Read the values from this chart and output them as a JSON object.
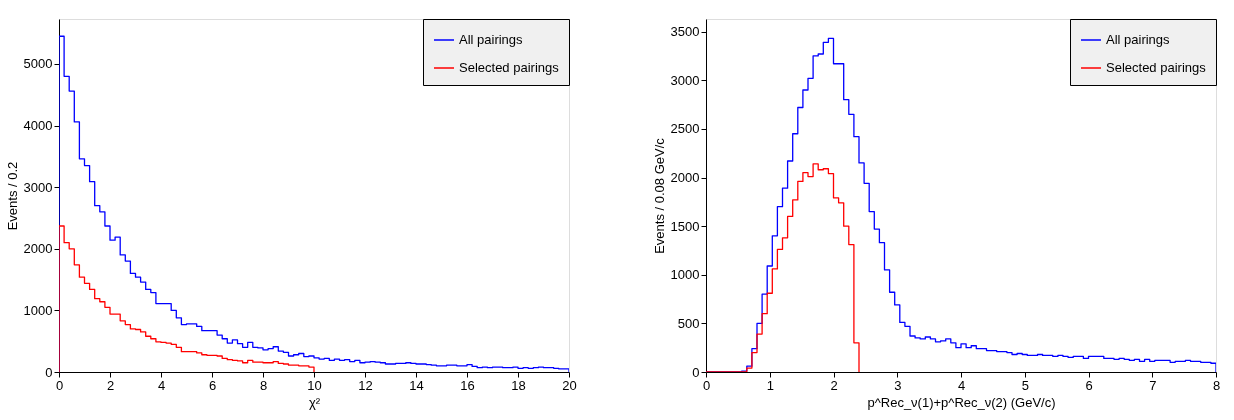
{
  "chart_data": [
    {
      "type": "histogram",
      "xlabel": "χ²",
      "ylabel": "Events / 0.2",
      "xlim": [
        0,
        20
      ],
      "ylim": [
        0,
        5730
      ],
      "xticks": [
        0,
        2,
        4,
        6,
        8,
        10,
        12,
        14,
        16,
        18,
        20
      ],
      "yticks": [
        0,
        1000,
        2000,
        3000,
        4000,
        5000
      ],
      "grid": false,
      "legend": "top right",
      "bins": [
        0,
        0.2,
        0.4,
        0.6,
        0.8,
        1,
        1.2,
        1.4,
        1.6,
        1.8,
        2,
        2.2,
        2.4,
        2.6,
        2.8,
        3,
        3.2,
        3.4,
        3.6,
        3.8,
        4,
        4.2,
        4.4,
        4.6,
        4.8,
        5,
        5.2,
        5.4,
        5.6,
        5.8,
        6,
        6.2,
        6.4,
        6.6,
        6.8,
        7,
        7.2,
        7.4,
        7.6,
        7.8,
        8,
        8.2,
        8.4,
        8.6,
        8.8,
        9,
        9.2,
        9.4,
        9.6,
        9.8,
        10,
        10.2,
        10.4,
        10.6,
        10.8,
        11,
        11.2,
        11.4,
        11.6,
        11.8,
        12,
        12.2,
        12.4,
        12.6,
        12.8,
        13,
        13.2,
        13.4,
        13.6,
        13.8,
        14,
        14.2,
        14.4,
        14.6,
        14.8,
        15,
        15.2,
        15.4,
        15.6,
        15.8,
        16,
        16.2,
        16.4,
        16.6,
        16.8,
        17,
        17.2,
        17.4,
        17.6,
        17.8,
        18,
        18.2,
        18.4,
        18.6,
        18.8,
        19,
        19.2,
        19.4,
        19.6,
        19.8,
        20
      ],
      "series": [
        {
          "name": "All pairings",
          "color": "#0000ff",
          "values": [
            5450,
            4800,
            4560,
            4060,
            3460,
            3350,
            3090,
            2700,
            2600,
            2370,
            2140,
            2190,
            1900,
            1800,
            1600,
            1540,
            1460,
            1340,
            1290,
            1110,
            1110,
            1110,
            1000,
            880,
            770,
            780,
            780,
            740,
            670,
            670,
            670,
            600,
            540,
            470,
            520,
            460,
            400,
            480,
            400,
            390,
            360,
            380,
            410,
            340,
            320,
            260,
            280,
            300,
            250,
            260,
            230,
            210,
            220,
            190,
            210,
            190,
            200,
            170,
            190,
            150,
            160,
            170,
            160,
            150,
            130,
            130,
            140,
            140,
            150,
            140,
            130,
            130,
            120,
            110,
            100,
            100,
            110,
            110,
            100,
            100,
            120,
            90,
            70,
            80,
            70,
            80,
            80,
            70,
            70,
            80,
            60,
            70,
            60,
            70,
            80,
            70,
            70,
            60,
            50,
            50
          ]
        },
        {
          "name": "Selected pairings",
          "color": "#ff0000",
          "bins": [
            0,
            0.2,
            0.4,
            0.6,
            0.8,
            1,
            1.2,
            1.4,
            1.6,
            1.8,
            2,
            2.2,
            2.4,
            2.6,
            2.8,
            3,
            3.2,
            3.4,
            3.6,
            3.8,
            4,
            4.2,
            4.4,
            4.6,
            4.8,
            5,
            5.2,
            5.4,
            5.6,
            5.8,
            6,
            6.2,
            6.4,
            6.6,
            6.8,
            7,
            7.2,
            7.4,
            7.6,
            7.8,
            8,
            8.2,
            8.4,
            8.6,
            8.8,
            9,
            9.2,
            9.4,
            9.6,
            9.8,
            10
          ],
          "values": [
            2370,
            2100,
            2000,
            1740,
            1540,
            1440,
            1340,
            1190,
            1140,
            1050,
            940,
            940,
            830,
            770,
            700,
            690,
            650,
            580,
            540,
            490,
            480,
            470,
            450,
            400,
            330,
            330,
            330,
            310,
            280,
            270,
            270,
            260,
            220,
            200,
            190,
            180,
            150,
            190,
            160,
            160,
            150,
            150,
            170,
            140,
            130,
            110,
            110,
            100,
            100,
            80
          ]
        }
      ]
    },
    {
      "type": "histogram",
      "xlabel": "p^Rec_ν(1)+p^Rec_ν(2) (GeV/c)",
      "ylabel": "Events / 0.08 GeV/c",
      "xlim": [
        0,
        8
      ],
      "ylim": [
        0,
        3630
      ],
      "xticks": [
        0,
        1,
        2,
        3,
        4,
        5,
        6,
        7,
        8
      ],
      "yticks": [
        0,
        500,
        1000,
        1500,
        2000,
        2500,
        3000,
        3500
      ],
      "grid": false,
      "legend": "top right",
      "bins": [
        0,
        0.08,
        0.16,
        0.24,
        0.32,
        0.4,
        0.48,
        0.56,
        0.64,
        0.72,
        0.8,
        0.88,
        0.96,
        1.04,
        1.12,
        1.2,
        1.28,
        1.36,
        1.44,
        1.52,
        1.6,
        1.68,
        1.76,
        1.84,
        1.92,
        2,
        2.08,
        2.16,
        2.24,
        2.32,
        2.4,
        2.48,
        2.56,
        2.64,
        2.72,
        2.8,
        2.88,
        2.96,
        3.04,
        3.12,
        3.2,
        3.28,
        3.36,
        3.44,
        3.52,
        3.6,
        3.68,
        3.76,
        3.84,
        3.92,
        4,
        4.08,
        4.16,
        4.24,
        4.32,
        4.4,
        4.48,
        4.56,
        4.64,
        4.72,
        4.8,
        4.88,
        4.96,
        5.04,
        5.12,
        5.2,
        5.28,
        5.36,
        5.44,
        5.52,
        5.6,
        5.68,
        5.76,
        5.84,
        5.92,
        6,
        6.08,
        6.16,
        6.24,
        6.32,
        6.4,
        6.48,
        6.56,
        6.64,
        6.72,
        6.8,
        6.88,
        6.96,
        7.04,
        7.12,
        7.2,
        7.28,
        7.36,
        7.44,
        7.52,
        7.6,
        7.68,
        7.76,
        7.84,
        7.92,
        8
      ],
      "series": [
        {
          "name": "All pairings",
          "color": "#0000ff",
          "values": [
            0,
            0,
            0,
            0,
            0,
            0,
            0,
            10,
            60,
            240,
            500,
            800,
            1090,
            1400,
            1700,
            1890,
            2170,
            2450,
            2720,
            2900,
            3020,
            3250,
            3270,
            3390,
            3430,
            3170,
            3170,
            2800,
            2650,
            2420,
            2150,
            1940,
            1650,
            1470,
            1330,
            1050,
            820,
            690,
            510,
            470,
            370,
            350,
            340,
            360,
            340,
            310,
            320,
            340,
            300,
            250,
            290,
            250,
            270,
            240,
            240,
            220,
            220,
            210,
            210,
            200,
            180,
            190,
            180,
            170,
            170,
            180,
            170,
            170,
            160,
            170,
            160,
            150,
            160,
            160,
            140,
            160,
            160,
            160,
            140,
            140,
            130,
            140,
            130,
            120,
            130,
            110,
            130,
            110,
            120,
            120,
            120,
            100,
            110,
            110,
            120,
            110,
            110,
            100,
            100,
            90
          ]
        },
        {
          "name": "Selected pairings",
          "color": "#ff0000",
          "bins": [
            0,
            0.08,
            0.16,
            0.24,
            0.32,
            0.4,
            0.48,
            0.56,
            0.64,
            0.72,
            0.8,
            0.88,
            0.96,
            1.04,
            1.12,
            1.2,
            1.28,
            1.36,
            1.44,
            1.52,
            1.6,
            1.68,
            1.76,
            1.84,
            1.92,
            2,
            2.08,
            2.16,
            2.24,
            2.32,
            2.4
          ],
          "values": [
            0,
            0,
            0,
            0,
            0,
            0,
            0,
            0,
            40,
            200,
            390,
            600,
            810,
            1060,
            1260,
            1380,
            1600,
            1770,
            1960,
            2050,
            2010,
            2140,
            2080,
            2090,
            2040,
            1790,
            1740,
            1500,
            1310,
            300
          ]
        }
      ]
    }
  ]
}
